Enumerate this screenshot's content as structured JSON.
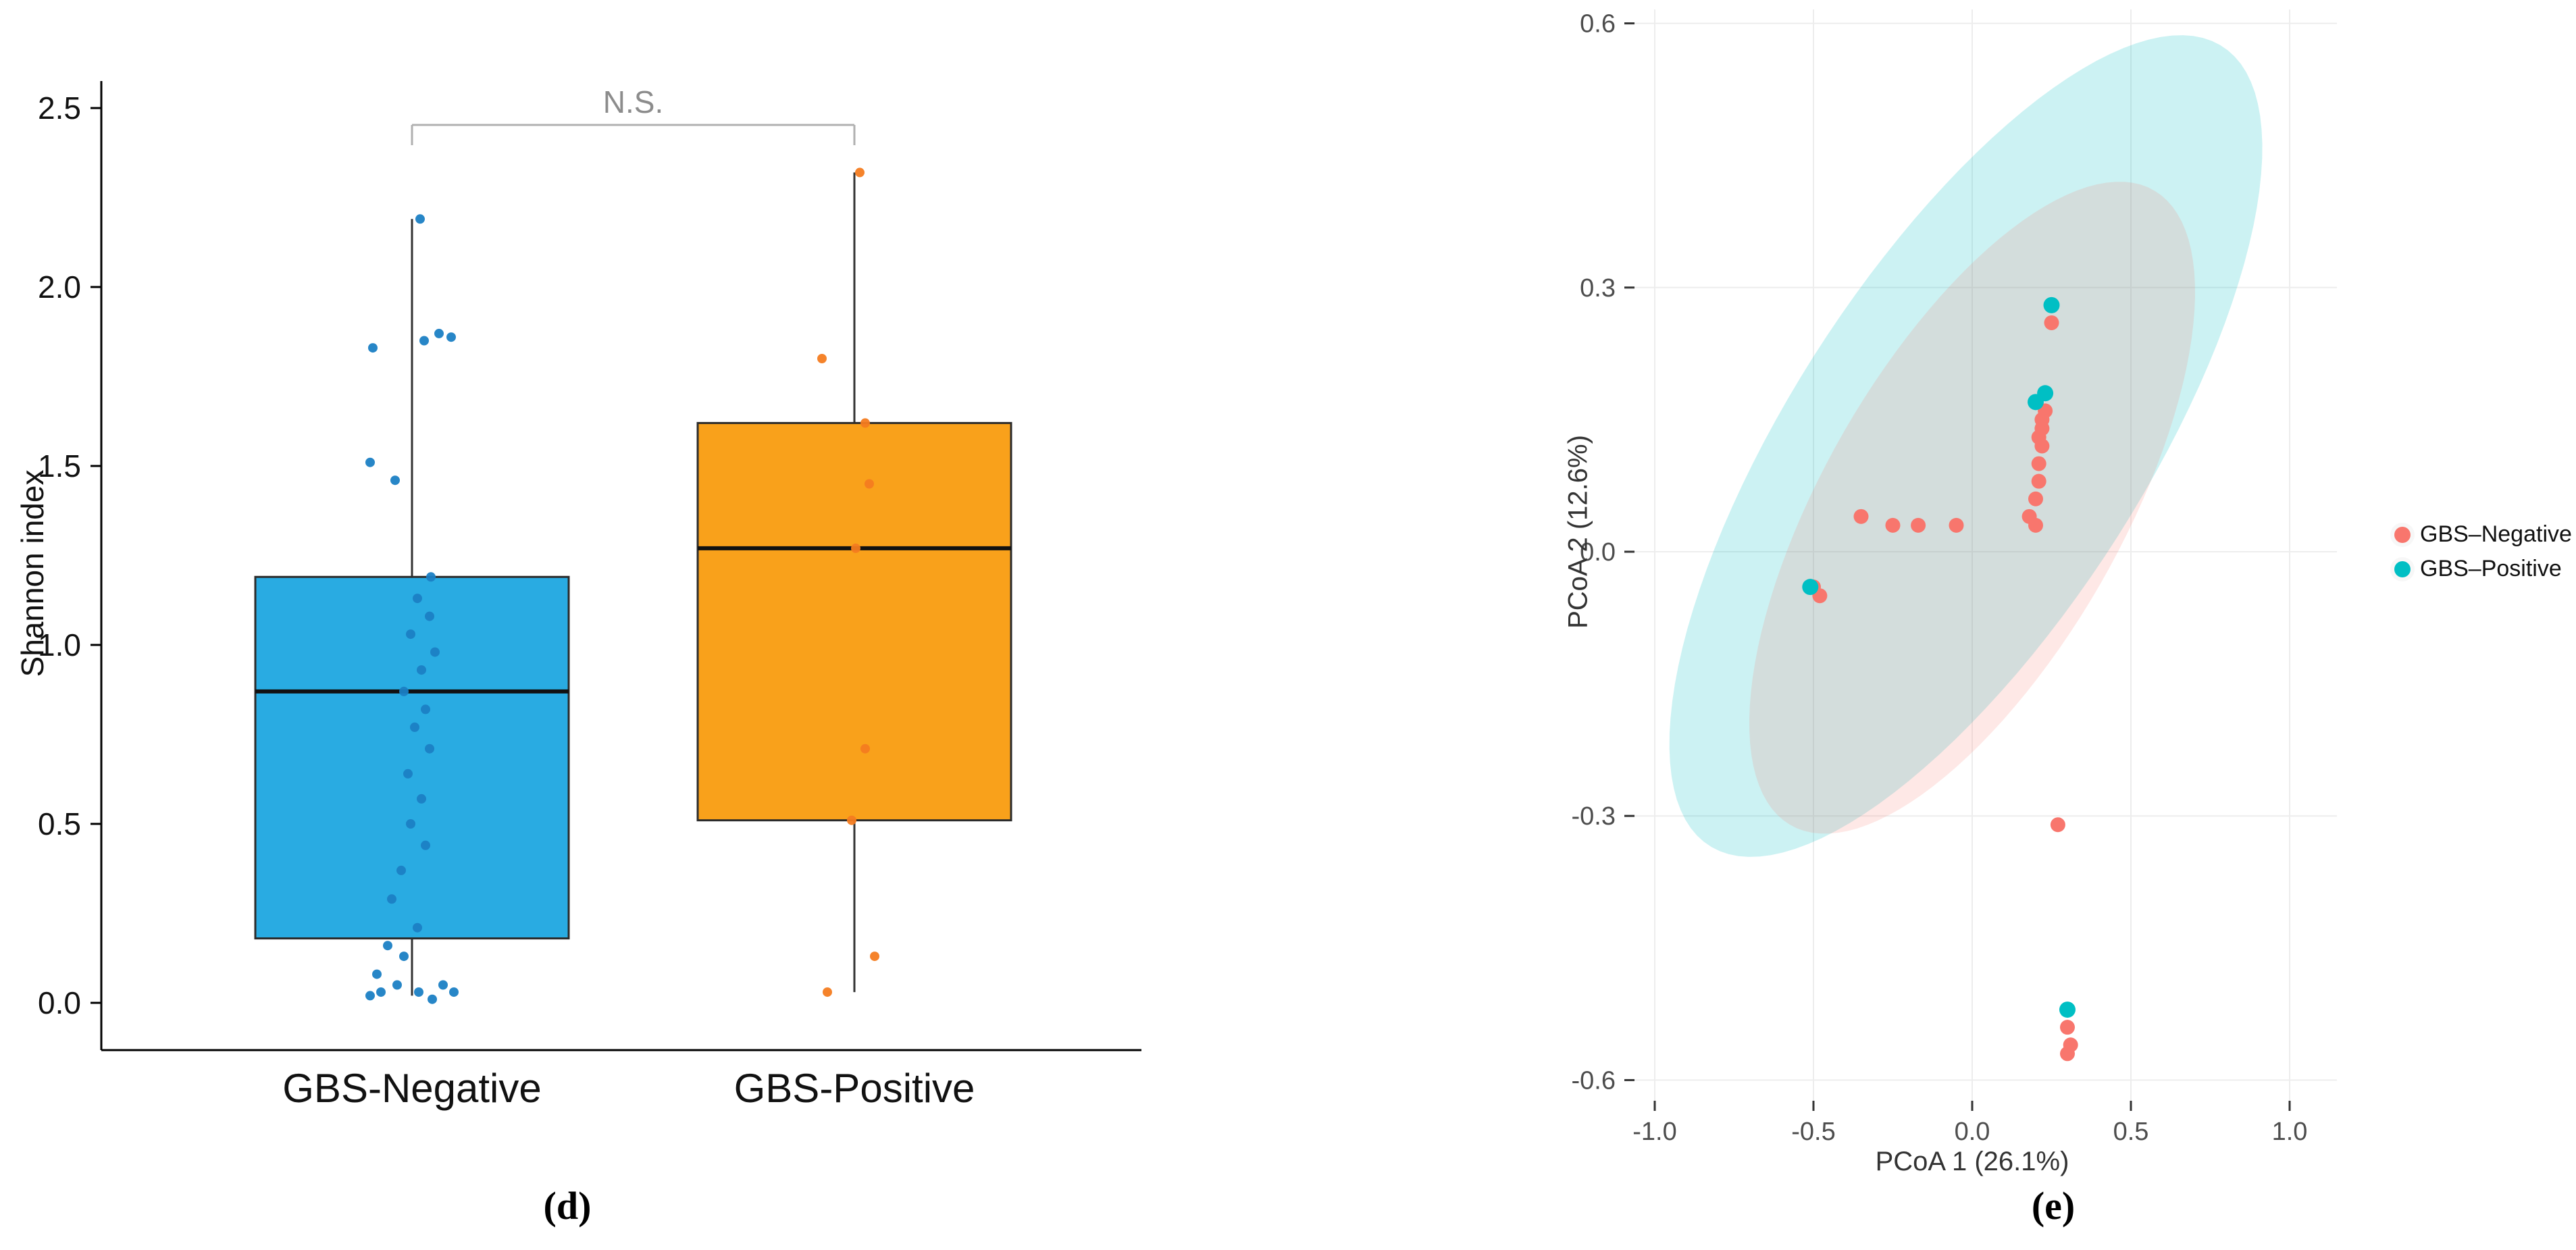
{
  "figure": {
    "background": "#ffffff"
  },
  "chart_data": [
    {
      "type": "bar",
      "subtype": "boxplot-with-jitter",
      "panel_label": "(d)",
      "ylabel": "Shannon index",
      "ylim": [
        -0.1,
        2.55
      ],
      "yticks": [
        "0.0",
        "0.5",
        "1.0",
        "1.5",
        "2.0",
        "2.5"
      ],
      "significance": {
        "label": "N.S.",
        "between": [
          "GBS-Negative",
          "GBS-Positive"
        ]
      },
      "groups": [
        {
          "name": "GBS-Negative",
          "box_color": "#29ABE2",
          "point_color": "#1B7FC4",
          "stats": {
            "whisker_low": 0.02,
            "q1": 0.18,
            "median": 0.87,
            "q3": 1.19,
            "whisker_high": 2.19
          },
          "points": [
            [
              12,
              2.19
            ],
            [
              -58,
              1.83
            ],
            [
              18,
              1.85
            ],
            [
              40,
              1.87
            ],
            [
              58,
              1.86
            ],
            [
              -62,
              1.51
            ],
            [
              -25,
              1.46
            ],
            [
              28,
              1.19
            ],
            [
              8,
              1.13
            ],
            [
              26,
              1.08
            ],
            [
              -2,
              1.03
            ],
            [
              34,
              0.98
            ],
            [
              14,
              0.93
            ],
            [
              -12,
              0.87
            ],
            [
              20,
              0.82
            ],
            [
              4,
              0.77
            ],
            [
              26,
              0.71
            ],
            [
              -6,
              0.64
            ],
            [
              14,
              0.57
            ],
            [
              -2,
              0.5
            ],
            [
              20,
              0.44
            ],
            [
              -16,
              0.37
            ],
            [
              -30,
              0.29
            ],
            [
              8,
              0.21
            ],
            [
              -36,
              0.16
            ],
            [
              -12,
              0.13
            ],
            [
              -52,
              0.08
            ],
            [
              -22,
              0.05
            ],
            [
              46,
              0.05
            ],
            [
              -46,
              0.03
            ],
            [
              10,
              0.03
            ],
            [
              62,
              0.03
            ],
            [
              -62,
              0.02
            ],
            [
              30,
              0.01
            ]
          ]
        },
        {
          "name": "GBS-Positive",
          "box_color": "#F9A11B",
          "point_color": "#F47C20",
          "stats": {
            "whisker_low": 0.03,
            "q1": 0.51,
            "median": 1.27,
            "q3": 1.62,
            "whisker_high": 2.32
          },
          "points": [
            [
              8,
              2.32
            ],
            [
              -48,
              1.8
            ],
            [
              16,
              1.62
            ],
            [
              22,
              1.45
            ],
            [
              2,
              1.27
            ],
            [
              16,
              0.71
            ],
            [
              -4,
              0.51
            ],
            [
              30,
              0.13
            ],
            [
              -40,
              0.03
            ]
          ]
        }
      ]
    },
    {
      "type": "scatter",
      "subtype": "pcoa-ordination",
      "panel_label": "(e)",
      "xlabel": "PCoA 1 (26.1%)",
      "ylabel": "PCoA 2 (12.6%)",
      "xlim": [
        -1.15,
        1.15
      ],
      "ylim": [
        -0.63,
        0.6
      ],
      "xticks": [
        "-1.0",
        "-0.5",
        "0.0",
        "0.5",
        "1.0"
      ],
      "yticks": [
        "0.6",
        "0.3",
        "0.0",
        "-0.3",
        "-0.6"
      ],
      "grid": "on",
      "legend_position": "right",
      "series": [
        {
          "name": "GBS–Negative",
          "color": "#F8766D",
          "ellipse": {
            "cx": 0.0,
            "cy": 0.05,
            "a": 0.75,
            "b": 0.26,
            "angle_deg": 22,
            "fill_opacity": 0.17
          },
          "points": [
            [
              -0.5,
              -0.04
            ],
            [
              -0.48,
              -0.05
            ],
            [
              -0.35,
              0.04
            ],
            [
              -0.25,
              0.03
            ],
            [
              -0.17,
              0.03
            ],
            [
              -0.05,
              0.03
            ],
            [
              0.18,
              0.04
            ],
            [
              0.2,
              0.03
            ],
            [
              0.2,
              0.06
            ],
            [
              0.21,
              0.08
            ],
            [
              0.21,
              0.1
            ],
            [
              0.22,
              0.12
            ],
            [
              0.21,
              0.13
            ],
            [
              0.22,
              0.14
            ],
            [
              0.22,
              0.15
            ],
            [
              0.23,
              0.16
            ],
            [
              0.23,
              0.18
            ],
            [
              0.25,
              0.26
            ],
            [
              0.27,
              -0.31
            ],
            [
              0.3,
              -0.54
            ],
            [
              0.31,
              -0.56
            ],
            [
              0.3,
              -0.57
            ]
          ]
        },
        {
          "name": "GBS–Positive",
          "color": "#00BFC4",
          "ellipse": {
            "cx": -0.02,
            "cy": 0.12,
            "a": 1.0,
            "b": 0.3,
            "angle_deg": 22,
            "fill_opacity": 0.2
          },
          "points": [
            [
              -0.51,
              -0.04
            ],
            [
              0.2,
              0.17
            ],
            [
              0.23,
              0.18
            ],
            [
              0.25,
              0.28
            ],
            [
              0.3,
              -0.52
            ]
          ]
        }
      ]
    }
  ]
}
